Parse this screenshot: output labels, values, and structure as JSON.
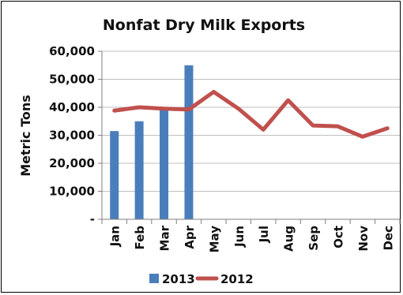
{
  "chart_data": {
    "type": "bar+line",
    "title": "Nonfat Dry Milk Exports",
    "ylabel": "Metric Tons",
    "xlabel": "",
    "ylim": [
      0,
      60000
    ],
    "yticks": [
      0,
      10000,
      20000,
      30000,
      40000,
      50000,
      60000
    ],
    "ytick_labels": [
      "-",
      "10,000",
      "20,000",
      "30,000",
      "40,000",
      "50,000",
      "60,000"
    ],
    "categories": [
      "Jan",
      "Feb",
      "Mar",
      "Apr",
      "May",
      "Jun",
      "Jul",
      "Aug",
      "Sep",
      "Oct",
      "Nov",
      "Dec"
    ],
    "grid": "horizontal",
    "legend_position": "bottom",
    "series": [
      {
        "name": "2013",
        "type": "bar",
        "color": "#4a7ebb",
        "values": [
          31500,
          35000,
          39000,
          55000,
          null,
          null,
          null,
          null,
          null,
          null,
          null,
          null
        ]
      },
      {
        "name": "2012",
        "type": "line",
        "color": "#c0504d",
        "values": [
          38800,
          40000,
          39500,
          39200,
          45500,
          39500,
          32000,
          42500,
          33500,
          33200,
          29500,
          32500
        ]
      }
    ]
  }
}
